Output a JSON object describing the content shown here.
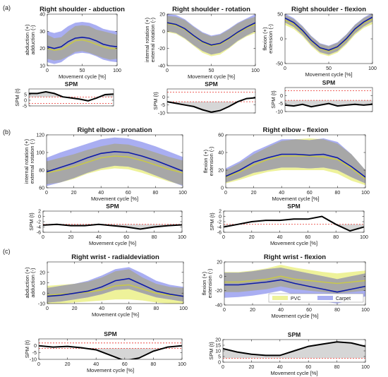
{
  "figure": {
    "panel_labels": [
      "(a)",
      "(b)",
      "(c)"
    ],
    "legend": [
      {
        "label": "PVC",
        "color": "#eef29a"
      },
      {
        "label": "Carpet",
        "color": "#a9aef2"
      }
    ]
  },
  "colors": {
    "pvc_band": "#eef29a",
    "carpet_band": "#a9aef2",
    "overlap_band": "#a7a7a7",
    "pvc_mean": "#c8c84a",
    "carpet_mean": "#0d1aa8",
    "spm_line": "#000000",
    "spm_fill": "#d6d6d6",
    "threshold": "#e8302a"
  },
  "chart_data": [
    {
      "id": "a1",
      "type": "line",
      "title": "Right shoulder - abduction",
      "xlabel": "Movement cycle [%]",
      "ylabel": [
        "abduction (+)",
        "adduction (-)"
      ],
      "xlim": [
        0,
        100
      ],
      "ylim": [
        10,
        40
      ],
      "xticks": [
        0,
        50,
        100
      ],
      "yticks": [
        10,
        20,
        30,
        40
      ],
      "x": [
        0,
        10,
        20,
        30,
        40,
        50,
        60,
        70,
        80,
        90,
        100
      ],
      "series": [
        {
          "name": "PVC",
          "mean": [
            20,
            19,
            19.5,
            22,
            24.5,
            25,
            24,
            22.5,
            21,
            20,
            20
          ],
          "lower": [
            14,
            13,
            13.5,
            15.5,
            18,
            18.5,
            17.5,
            16,
            14.5,
            13.5,
            14
          ],
          "upper": [
            28,
            26,
            26.5,
            30,
            33,
            33.5,
            33,
            31,
            30,
            29,
            28
          ]
        },
        {
          "name": "Carpet",
          "mean": [
            21,
            20,
            21,
            24,
            26,
            26.5,
            26,
            24.5,
            22.5,
            21.5,
            21
          ],
          "lower": [
            12,
            11,
            12,
            15,
            17,
            17.5,
            17,
            15.5,
            13.5,
            12.5,
            12
          ],
          "upper": [
            30,
            29,
            30,
            33,
            35,
            35.5,
            35,
            33.5,
            31.5,
            30.5,
            30
          ]
        }
      ]
    },
    {
      "id": "a2",
      "type": "line",
      "title": "Right shoulder - rotation",
      "xlabel": "Movement cycle [%]",
      "ylabel": [
        "internal rotation (+)",
        "external rotation (-)"
      ],
      "xlim": [
        0,
        100
      ],
      "ylim": [
        -40,
        20
      ],
      "xticks": [
        0,
        50,
        100
      ],
      "yticks": [
        -40,
        -20,
        0,
        20
      ],
      "x": [
        0,
        10,
        20,
        30,
        40,
        50,
        60,
        70,
        80,
        90,
        100
      ],
      "series": [
        {
          "name": "PVC",
          "mean": [
            9,
            7,
            2,
            -6,
            -13,
            -17,
            -15,
            -9,
            -2,
            4,
            8
          ],
          "lower": [
            -1,
            -3,
            -9,
            -17,
            -25,
            -29,
            -27,
            -20,
            -12,
            -6,
            -2
          ],
          "upper": [
            18,
            17,
            13,
            5,
            -2,
            -6,
            -4,
            2,
            9,
            14,
            17
          ]
        },
        {
          "name": "Carpet",
          "mean": [
            10,
            8,
            3,
            -5,
            -12,
            -16,
            -14,
            -8,
            -1,
            5,
            10
          ],
          "lower": [
            0,
            -2,
            -8,
            -16,
            -23,
            -27,
            -25,
            -19,
            -11,
            -5,
            0
          ],
          "upper": [
            20,
            19,
            14,
            6,
            -1,
            -5,
            -3,
            3,
            10,
            15,
            20
          ]
        }
      ]
    },
    {
      "id": "a3",
      "type": "line",
      "title": "Right shoulder - flexion",
      "xlabel": "Movement cycle [%]",
      "ylabel": [
        "flexion (+)",
        "extension (-)"
      ],
      "xlim": [
        0,
        100
      ],
      "ylim": [
        -50,
        50
      ],
      "xticks": [
        0,
        50,
        100
      ],
      "yticks": [
        -50,
        0,
        50
      ],
      "x": [
        0,
        10,
        20,
        30,
        40,
        50,
        60,
        70,
        80,
        90,
        100
      ],
      "series": [
        {
          "name": "PVC",
          "mean": [
            38,
            30,
            15,
            -5,
            -20,
            -25,
            -18,
            -2,
            18,
            32,
            40
          ],
          "lower": [
            28,
            20,
            5,
            -15,
            -30,
            -35,
            -28,
            -12,
            8,
            22,
            30
          ],
          "upper": [
            48,
            40,
            25,
            5,
            -10,
            -15,
            -8,
            8,
            28,
            42,
            50
          ]
        },
        {
          "name": "Carpet",
          "mean": [
            42,
            33,
            17,
            -3,
            -18,
            -23,
            -16,
            0,
            20,
            34,
            44
          ],
          "lower": [
            33,
            24,
            8,
            -12,
            -27,
            -32,
            -25,
            -9,
            11,
            25,
            35
          ],
          "upper": [
            51,
            42,
            26,
            6,
            -9,
            -14,
            -7,
            9,
            29,
            43,
            53
          ]
        }
      ]
    },
    {
      "id": "a4",
      "type": "line",
      "title": "SPM",
      "xlabel": "",
      "ylabel": "SPM {t}",
      "xlim": [
        0,
        100
      ],
      "ylim": [
        -5,
        10
      ],
      "xticks": [],
      "yticks": [
        -5,
        0,
        5
      ],
      "x": [
        0,
        10,
        20,
        30,
        40,
        50,
        60,
        70,
        80,
        90,
        100
      ],
      "spm": [
        6,
        6,
        7.5,
        6,
        3,
        2,
        1,
        -0.5,
        2,
        5,
        5.5
      ],
      "threshold": [
        2.9,
        -2.9
      ]
    },
    {
      "id": "a5",
      "type": "line",
      "title": "SPM",
      "xlabel": "",
      "ylabel": "SPM {t}",
      "xlim": [
        0,
        100
      ],
      "ylim": [
        -10,
        5
      ],
      "xticks": [],
      "yticks": [
        -10,
        -5,
        0
      ],
      "x": [
        0,
        10,
        20,
        30,
        40,
        50,
        60,
        70,
        80,
        90,
        100
      ],
      "spm": [
        -3,
        -4,
        -5,
        -6,
        -8,
        -9.5,
        -8.5,
        -6,
        -3,
        -1,
        -0.5
      ],
      "threshold": [
        3,
        -3
      ]
    },
    {
      "id": "a6",
      "type": "line",
      "title": "SPM",
      "xlabel": "",
      "ylabel": "SPM {t}",
      "xlim": [
        0,
        100
      ],
      "ylim": [
        -10,
        5
      ],
      "xticks": [],
      "yticks": [
        -10,
        -5,
        0
      ],
      "x": [
        0,
        10,
        20,
        30,
        40,
        50,
        60,
        70,
        80,
        90,
        100
      ],
      "spm": [
        -6,
        -6.5,
        -5.5,
        -7,
        -6,
        -5,
        -6.5,
        -6,
        -5.5,
        -6,
        -5.5
      ],
      "threshold": [
        3,
        -3
      ]
    },
    {
      "id": "b1",
      "type": "line",
      "title": "Right elbow - pronation",
      "xlabel": "Movement cycle [%]",
      "ylabel": [
        "internal rotation (+)",
        "external rotation (-)"
      ],
      "xlim": [
        0,
        100
      ],
      "ylim": [
        60,
        120
      ],
      "xticks": [
        0,
        20,
        40,
        60,
        80,
        100
      ],
      "yticks": [
        60,
        80,
        100,
        120
      ],
      "x": [
        0,
        10,
        20,
        30,
        40,
        50,
        60,
        70,
        80,
        90,
        100
      ],
      "series": [
        {
          "name": "PVC",
          "mean": [
            77,
            80,
            84,
            89,
            94,
            96,
            95,
            91,
            86,
            81,
            77
          ],
          "lower": [
            64,
            66,
            70,
            76,
            80,
            82,
            81,
            77,
            72,
            67,
            63
          ],
          "upper": [
            90,
            94,
            98,
            103,
            107,
            110,
            109,
            105,
            100,
            95,
            91
          ]
        },
        {
          "name": "Carpet",
          "mean": [
            78,
            83,
            88,
            94,
            99,
            101,
            100,
            96,
            91,
            85,
            79
          ],
          "lower": [
            62,
            66,
            71,
            77,
            82,
            85,
            84,
            80,
            74,
            68,
            62
          ],
          "upper": [
            94,
            100,
            105,
            110,
            115,
            117,
            116,
            112,
            107,
            101,
            95
          ]
        }
      ]
    },
    {
      "id": "b2",
      "type": "line",
      "title": "Right elbow - flexion",
      "xlabel": "Movement cycle [%]",
      "ylabel": [
        "flexion (+)",
        "extension (-)"
      ],
      "xlim": [
        0,
        100
      ],
      "ylim": [
        0,
        60
      ],
      "xticks": [
        0,
        20,
        40,
        60,
        80,
        100
      ],
      "yticks": [
        0,
        20,
        40,
        60
      ],
      "x": [
        0,
        10,
        20,
        30,
        40,
        50,
        60,
        70,
        80,
        90,
        100
      ],
      "series": [
        {
          "name": "PVC",
          "mean": [
            12,
            18,
            26,
            32,
            36,
            36,
            36,
            35,
            32,
            22,
            10
          ],
          "lower": [
            5,
            9,
            14,
            18,
            20,
            20,
            20,
            20,
            16,
            8,
            3
          ],
          "upper": [
            20,
            28,
            38,
            46,
            53,
            55,
            56,
            55,
            50,
            38,
            20
          ]
        },
        {
          "name": "Carpet",
          "mean": [
            13,
            20,
            29,
            34,
            38,
            38,
            37,
            38,
            34,
            24,
            12
          ],
          "lower": [
            6,
            11,
            17,
            20,
            23,
            23,
            22,
            23,
            20,
            12,
            5
          ],
          "upper": [
            22,
            30,
            41,
            48,
            55,
            55,
            54,
            56,
            52,
            38,
            20
          ]
        }
      ]
    },
    {
      "id": "b3",
      "type": "line",
      "title": "SPM",
      "xlabel": "Movement cycle [%]",
      "ylabel": "SPM {t}",
      "xlim": [
        0,
        100
      ],
      "ylim": [
        -6,
        2
      ],
      "xticks": [
        0,
        20,
        40,
        60,
        80,
        100
      ],
      "yticks": [
        -6,
        -4,
        -2,
        0,
        2
      ],
      "x": [
        0,
        10,
        20,
        30,
        40,
        50,
        60,
        70,
        80,
        90,
        100
      ],
      "spm": [
        -3.3,
        -3,
        -3.5,
        -3.5,
        -3,
        -3.5,
        -4,
        -4.8,
        -4,
        -3.5,
        -3.2
      ],
      "threshold": [
        3,
        -3
      ]
    },
    {
      "id": "b4",
      "type": "line",
      "title": "SPM",
      "xlabel": "Movement cycle [%]",
      "ylabel": "SPM {t}",
      "xlim": [
        0,
        100
      ],
      "ylim": [
        -6,
        2
      ],
      "xticks": [
        0,
        20,
        40,
        60,
        80,
        100
      ],
      "yticks": [
        -6,
        -4,
        -2,
        0,
        2
      ],
      "x": [
        0,
        10,
        20,
        30,
        40,
        50,
        60,
        70,
        80,
        90,
        100
      ],
      "spm": [
        -4,
        -3,
        -2,
        -1.5,
        -1.5,
        -1,
        -1,
        0,
        -3,
        -5.5,
        -4
      ],
      "threshold": [
        3,
        -3
      ]
    },
    {
      "id": "c1",
      "type": "line",
      "title": "Right wrist - radialdeviation",
      "xlabel": "Movement cycle [%]",
      "ylabel": [
        "abduction (+)",
        "adduction (-)"
      ],
      "xlim": [
        0,
        100
      ],
      "ylim": [
        -10,
        30
      ],
      "xticks": [
        0,
        20,
        40,
        60,
        80,
        100
      ],
      "yticks": [
        -10,
        0,
        10,
        20
      ],
      "x": [
        0,
        10,
        20,
        30,
        40,
        50,
        60,
        70,
        80,
        90,
        100
      ],
      "series": [
        {
          "name": "PVC",
          "mean": [
            -2,
            -1,
            0,
            1,
            3,
            7,
            8,
            4,
            0,
            -2,
            -3
          ],
          "lower": [
            -11,
            -10,
            -9,
            -8,
            -7,
            -6,
            -6,
            -7,
            -9,
            -10,
            -11
          ],
          "upper": [
            7,
            8,
            9,
            11,
            15,
            21,
            23,
            15,
            9,
            6,
            5
          ]
        },
        {
          "name": "Carpet",
          "mean": [
            -3,
            -2,
            0,
            2,
            6,
            12,
            14,
            8,
            2,
            -1,
            -3
          ],
          "lower": [
            -9,
            -8,
            -6,
            -4,
            -1,
            3,
            4,
            0,
            -4,
            -6,
            -8
          ],
          "upper": [
            5,
            7,
            9,
            12,
            17,
            23,
            25,
            19,
            12,
            8,
            6
          ]
        }
      ]
    },
    {
      "id": "c2",
      "type": "line",
      "title": "Right wrist - flexion",
      "xlabel": "Movement cycle [%]",
      "ylabel": [
        "flexion (+)",
        "extension (-)"
      ],
      "xlim": [
        0,
        100
      ],
      "ylim": [
        -40,
        20
      ],
      "xticks": [
        0,
        20,
        40,
        60,
        80,
        100
      ],
      "yticks": [
        -40,
        -20,
        0,
        20
      ],
      "x": [
        0,
        10,
        20,
        30,
        40,
        50,
        60,
        70,
        80,
        90,
        100
      ],
      "series": [
        {
          "name": "PVC",
          "mean": [
            -8,
            -8,
            -6,
            -4,
            0,
            -4,
            -6,
            -8,
            -10,
            -8,
            -6
          ],
          "lower": [
            -22,
            -22,
            -20,
            -18,
            -14,
            -18,
            -20,
            -22,
            -24,
            -22,
            -20
          ],
          "upper": [
            6,
            6,
            8,
            11,
            16,
            12,
            9,
            6,
            4,
            6,
            8
          ]
        },
        {
          "name": "Carpet",
          "mean": [
            -12,
            -12,
            -10,
            -8,
            -5,
            -10,
            -14,
            -18,
            -22,
            -18,
            -14
          ],
          "lower": [
            -30,
            -29,
            -27,
            -24,
            -20,
            -26,
            -31,
            -35,
            -38,
            -33,
            -28
          ],
          "upper": [
            5,
            5,
            7,
            10,
            12,
            8,
            4,
            0,
            -4,
            0,
            4
          ]
        }
      ]
    },
    {
      "id": "c3",
      "type": "line",
      "title": "SPM",
      "xlabel": "Movement cycle [%]",
      "ylabel": "SPM {t}",
      "xlim": [
        0,
        100
      ],
      "ylim": [
        -10,
        5
      ],
      "xticks": [
        0,
        20,
        40,
        60,
        80,
        100
      ],
      "yticks": [
        -10,
        -5,
        0
      ],
      "x": [
        0,
        10,
        20,
        30,
        40,
        50,
        60,
        70,
        80,
        90,
        100
      ],
      "spm": [
        0,
        -1,
        -0.5,
        -1.5,
        -3,
        -7,
        -11,
        -9,
        -4,
        -1,
        0
      ],
      "threshold": [
        2,
        -2
      ]
    },
    {
      "id": "c4",
      "type": "line",
      "title": "SPM",
      "xlabel": "Movement cycle [%]",
      "ylabel": "SPM {t}",
      "xlim": [
        0,
        100
      ],
      "ylim": [
        0,
        20
      ],
      "xticks": [
        0,
        20,
        40,
        60,
        80,
        100
      ],
      "yticks": [
        0,
        5,
        10,
        15,
        20
      ],
      "x": [
        0,
        10,
        20,
        30,
        40,
        50,
        60,
        70,
        80,
        90,
        100
      ],
      "spm": [
        12,
        9,
        7,
        6,
        6,
        10,
        14,
        16,
        18,
        17,
        14
      ],
      "threshold": [
        3.5,
        -3.5
      ]
    }
  ]
}
